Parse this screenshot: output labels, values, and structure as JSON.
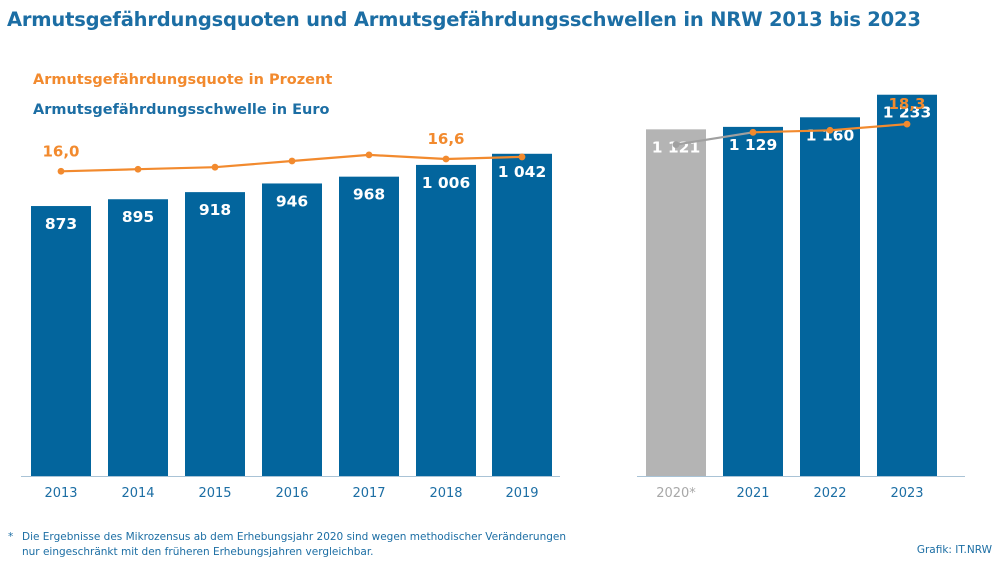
{
  "title": "Armutsgefährdungsquoten und Armutsgefährdungsschwellen in NRW 2013 bis 2023",
  "legend": {
    "quote": "Armutsgefährdungsquote in Prozent",
    "threshold": "Armutsgefährdungsschwelle in Euro"
  },
  "footnote": {
    "marker": "*",
    "line1": "Die Ergebnisse des Mikrozensus ab dem Erhebungsjahr 2020 sind wegen methodischer Veränderungen",
    "line2": "nur eingeschränkt mit den früheren Erhebungsjahren vergleichbar."
  },
  "credit": "Grafik: IT.NRW",
  "colors": {
    "bar": "#03659d",
    "bar_special": "#b4b4b4",
    "line": "#f28a2e",
    "line_special": "#a0a0a0",
    "title": "#1c6ea4",
    "axis_label": "#1c6ea4",
    "axis_label_special": "#a8a8a8"
  },
  "chart_data": {
    "type": "bar",
    "categories": [
      "2013",
      "2014",
      "2015",
      "2016",
      "2017",
      "2018",
      "2019",
      "2020*",
      "2021",
      "2022",
      "2023"
    ],
    "series": [
      {
        "name": "Armutsgefährdungsschwelle in Euro",
        "type": "bar",
        "values": [
          873,
          895,
          918,
          946,
          968,
          1006,
          1042,
          1121,
          1129,
          1160,
          1233
        ],
        "labels": [
          "873",
          "895",
          "918",
          "946",
          "968",
          "1 006",
          "1 042",
          "1 121",
          "1 129",
          "1 160",
          "1 233"
        ]
      },
      {
        "name": "Armutsgefährdungsquote in Prozent",
        "type": "line",
        "values": [
          16.0,
          16.1,
          16.2,
          16.5,
          16.8,
          16.6,
          16.7,
          17.3,
          17.9,
          18.0,
          18.3
        ],
        "labels": [
          "16,0",
          null,
          null,
          null,
          null,
          "16,6",
          null,
          null,
          null,
          null,
          "18,3"
        ]
      }
    ],
    "special_category": "2020*",
    "line_segments": [
      [
        0,
        6
      ],
      [
        7,
        8
      ],
      [
        8,
        10
      ]
    ],
    "ylim_bars": [
      0,
      1300
    ],
    "ylim_line": [
      14.6,
      18.5
    ],
    "grid": false
  }
}
